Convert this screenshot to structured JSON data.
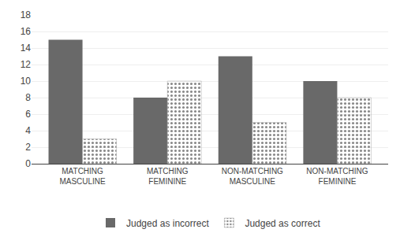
{
  "chart_data": {
    "type": "bar",
    "categories": [
      "MATCHING\nMASCULINE",
      "MATCHING\nFEMININE",
      "NON-MATCHING\nMASCULINE",
      "NON-MATCHING\nFEMININE"
    ],
    "series": [
      {
        "name": "Judged as incorrect",
        "color": "#696969",
        "values": [
          15,
          8,
          13,
          10
        ]
      },
      {
        "name": "Judged as correct",
        "color": "#d8d8d8",
        "values": [
          3,
          10,
          5,
          8
        ]
      }
    ],
    "ylim": [
      0,
      18
    ],
    "yticks": [
      0,
      2,
      4,
      6,
      8,
      10,
      12,
      14,
      16,
      18
    ],
    "grid": true,
    "legend": "bottom"
  }
}
